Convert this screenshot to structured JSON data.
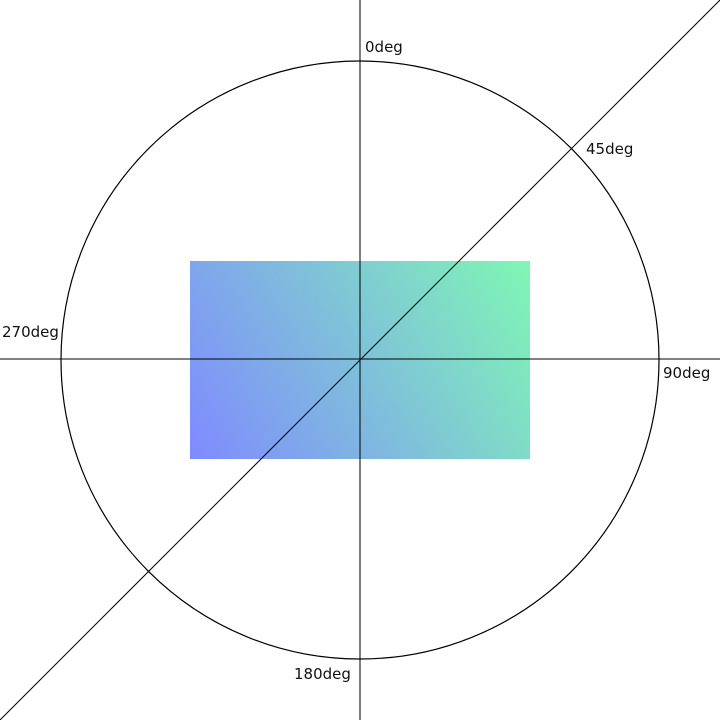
{
  "labels": {
    "deg_0": "0deg",
    "deg_45": "45deg",
    "deg_90": "90deg",
    "deg_180": "180deg",
    "deg_270": "270deg"
  },
  "gradient": {
    "angle": "45deg",
    "start_color": "#7f8aff",
    "end_color": "#7ff7b4"
  },
  "colors": {
    "stroke": "#000000",
    "background": "#ffffff"
  }
}
